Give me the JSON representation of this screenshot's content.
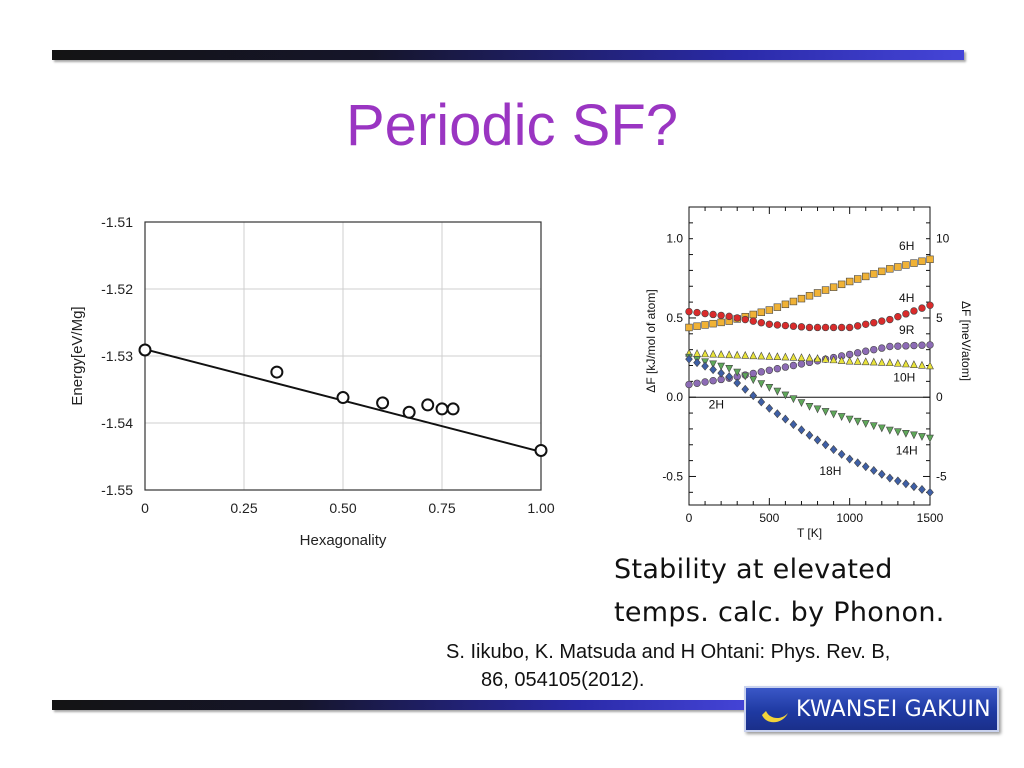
{
  "slide": {
    "title": "Periodic SF?",
    "caption_lines": [
      "Stability at elevated",
      "temps. calc. by Phonon."
    ],
    "citation_lines": [
      "S. Iikubo, K. Matsuda and H Ohtani: Phys. Rev. B,",
      "86, 054105(2012)."
    ],
    "logo_text": "KWANSEI GAKUIN",
    "colors": {
      "title": "#9a35c2",
      "bar_dark": "#141414",
      "bar_blue": "#4545d8",
      "logo_bg": "#1f3aa3"
    }
  },
  "chart_data": [
    {
      "type": "scatter",
      "xlabel": "Hexagonality",
      "ylabel": "Energy[eV/Mg]",
      "xlim": [
        0,
        1
      ],
      "ylim": [
        -1.55,
        -1.51
      ],
      "x_ticks": [
        0,
        0.25,
        0.5,
        0.75,
        1.0
      ],
      "x_tick_labels": [
        "0",
        "0.25",
        "0.50",
        "0.75",
        "1.00"
      ],
      "y_ticks": [
        -1.51,
        -1.52,
        -1.53,
        -1.54,
        -1.55
      ],
      "y_tick_labels": [
        "-1.51",
        "-1.52",
        "-1.53",
        "-1.54",
        "-1.55"
      ],
      "grid": true,
      "points": [
        {
          "x": 0,
          "y": -1.5291
        },
        {
          "x": 0.333,
          "y": -1.5324
        },
        {
          "x": 0.5,
          "y": -1.5362
        },
        {
          "x": 0.6,
          "y": -1.537
        },
        {
          "x": 0.667,
          "y": -1.5384
        },
        {
          "x": 0.714,
          "y": -1.5373
        },
        {
          "x": 0.75,
          "y": -1.5379
        },
        {
          "x": 0.778,
          "y": -1.5379
        },
        {
          "x": 1.0,
          "y": -1.5441
        }
      ],
      "fit_line": {
        "x": [
          0,
          1.0
        ],
        "y": [
          -1.529,
          -1.5443
        ]
      }
    },
    {
      "type": "scatter",
      "xlabel": "T [K]",
      "ylabel": "ΔF [kJ/mol of atom]",
      "ylabel_right": "ΔF [meV/atom]",
      "xlim": [
        0,
        1500
      ],
      "ylim": [
        -0.68,
        1.2
      ],
      "x_ticks": [
        0,
        500,
        1000,
        1500
      ],
      "x_tick_labels": [
        "0",
        "500",
        "1000",
        "1500"
      ],
      "y_ticks": [
        1.0,
        0.5,
        0.0,
        -0.5
      ],
      "y_tick_labels": [
        "1.0",
        "0.5",
        "0.0",
        "-0.5"
      ],
      "y_right_ticks": [
        10,
        5,
        0,
        -5
      ],
      "y_right_tick_labels": [
        "10",
        "5",
        "0",
        "-5"
      ],
      "zero_line": true,
      "series": [
        {
          "name": "6H",
          "marker": "square",
          "color": "#f0b236",
          "x": [
            0,
            250,
            500,
            750,
            1000,
            1250,
            1500
          ],
          "y": [
            0.44,
            0.48,
            0.55,
            0.64,
            0.73,
            0.81,
            0.87
          ],
          "label_at": [
            1355,
            0.93
          ]
        },
        {
          "name": "4H",
          "marker": "circle",
          "color": "#d92b2b",
          "x": [
            0,
            250,
            500,
            750,
            1000,
            1250,
            1500
          ],
          "y": [
            0.54,
            0.51,
            0.46,
            0.44,
            0.44,
            0.49,
            0.58
          ],
          "label_at": [
            1355,
            0.6
          ]
        },
        {
          "name": "9R",
          "marker": "circle",
          "color": "#8c6bb5",
          "x": [
            0,
            250,
            500,
            750,
            1000,
            1250,
            1500
          ],
          "y": [
            0.08,
            0.12,
            0.17,
            0.22,
            0.27,
            0.32,
            0.33
          ],
          "label_at": [
            1355,
            0.4
          ]
        },
        {
          "name": "10H",
          "marker": "triangle-up",
          "color": "#e8e23a",
          "x": [
            0,
            250,
            500,
            750,
            1000,
            1250,
            1500
          ],
          "y": [
            0.28,
            0.27,
            0.26,
            0.25,
            0.23,
            0.22,
            0.2
          ],
          "label_at": [
            1340,
            0.1
          ]
        },
        {
          "name": "14H",
          "marker": "triangle-down",
          "color": "#5fa85a",
          "x": [
            0,
            250,
            500,
            750,
            1000,
            1250,
            1500
          ],
          "y": [
            0.25,
            0.18,
            0.06,
            -0.06,
            -0.14,
            -0.21,
            -0.26
          ],
          "label_at": [
            1355,
            -0.36
          ]
        },
        {
          "name": "18H",
          "marker": "diamond",
          "color": "#3e5fa6",
          "x": [
            0,
            250,
            500,
            750,
            1000,
            1250,
            1500
          ],
          "y": [
            0.24,
            0.13,
            -0.07,
            -0.24,
            -0.39,
            -0.51,
            -0.6
          ],
          "label_at": [
            880,
            -0.49
          ]
        }
      ],
      "annotations": [
        {
          "text": "2H",
          "at": [
            170,
            -0.07
          ]
        }
      ]
    }
  ]
}
